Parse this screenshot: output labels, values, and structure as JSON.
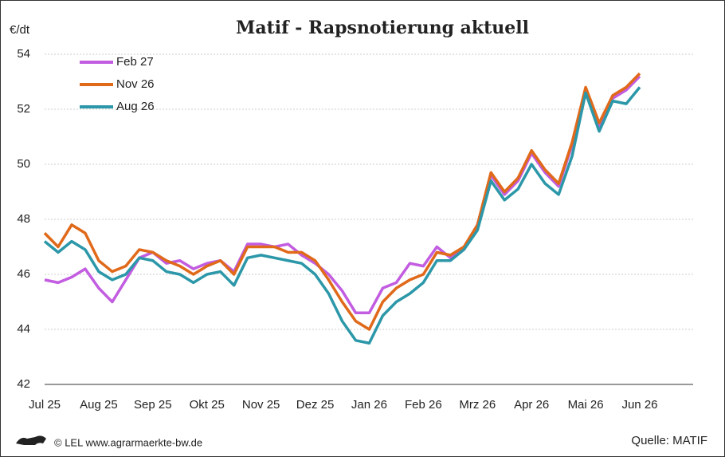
{
  "chart_data": {
    "type": "line",
    "title": "Matif - Rapsnotierung aktuell",
    "y_unit": "€/dt",
    "credit": "© LEL www.agrarmaerkte-bw.de",
    "source": "Quelle: MATIF",
    "categories": [
      "Jul 25",
      null,
      null,
      null,
      "Aug 25",
      null,
      null,
      null,
      "Sep 25",
      null,
      null,
      null,
      "Okt 25",
      null,
      null,
      null,
      "Nov 25",
      null,
      null,
      null,
      "Dez 25",
      null,
      null,
      null,
      "Jan 26",
      null,
      null,
      null,
      "Feb 26",
      null,
      null,
      null,
      "Mrz 26",
      null,
      null,
      null,
      "Apr 26",
      null,
      null,
      null,
      "Mai 26",
      null,
      null,
      null,
      "Jun 26"
    ],
    "series": [
      {
        "name": "Feb 27",
        "color": "#c25ce0",
        "values": [
          45.8,
          45.7,
          45.9,
          46.2,
          45.5,
          45.0,
          45.8,
          46.6,
          46.8,
          46.4,
          46.5,
          46.2,
          46.4,
          46.5,
          46.1,
          47.1,
          47.1,
          47.0,
          47.1,
          46.7,
          46.4,
          46.0,
          45.4,
          44.6,
          44.6,
          45.5,
          45.7,
          46.4,
          46.3,
          47.0,
          46.6,
          46.9,
          47.8,
          49.6,
          48.9,
          49.4,
          50.4,
          49.7,
          49.2,
          50.7,
          52.7,
          51.4,
          52.4,
          52.7,
          53.2
        ]
      },
      {
        "name": "Nov 26",
        "color": "#e0691a",
        "values": [
          47.5,
          47.0,
          47.8,
          47.5,
          46.5,
          46.1,
          46.3,
          46.9,
          46.8,
          46.5,
          46.3,
          46.0,
          46.3,
          46.5,
          46.0,
          47.0,
          47.0,
          47.0,
          46.8,
          46.8,
          46.5,
          45.8,
          45.0,
          44.3,
          44.0,
          45.0,
          45.5,
          45.8,
          46.0,
          46.8,
          46.7,
          47.0,
          47.8,
          49.7,
          49.0,
          49.5,
          50.5,
          49.8,
          49.3,
          50.8,
          52.8,
          51.5,
          52.5,
          52.8,
          53.3
        ]
      },
      {
        "name": "Aug 26",
        "color": "#2b97a8",
        "values": [
          47.2,
          46.8,
          47.2,
          46.9,
          46.1,
          45.8,
          46.0,
          46.6,
          46.5,
          46.1,
          46.0,
          45.7,
          46.0,
          46.1,
          45.6,
          46.6,
          46.7,
          46.6,
          46.5,
          46.4,
          46.0,
          45.3,
          44.3,
          43.6,
          43.5,
          44.5,
          45.0,
          45.3,
          45.7,
          46.5,
          46.5,
          46.9,
          47.6,
          49.4,
          48.7,
          49.1,
          50.0,
          49.3,
          48.9,
          50.3,
          52.6,
          51.2,
          52.3,
          52.2,
          52.8
        ]
      }
    ],
    "ylim": [
      42,
      54
    ],
    "yticks": [
      42,
      44,
      46,
      48,
      50,
      52,
      54
    ],
    "grid": true,
    "legend": "top-left"
  }
}
